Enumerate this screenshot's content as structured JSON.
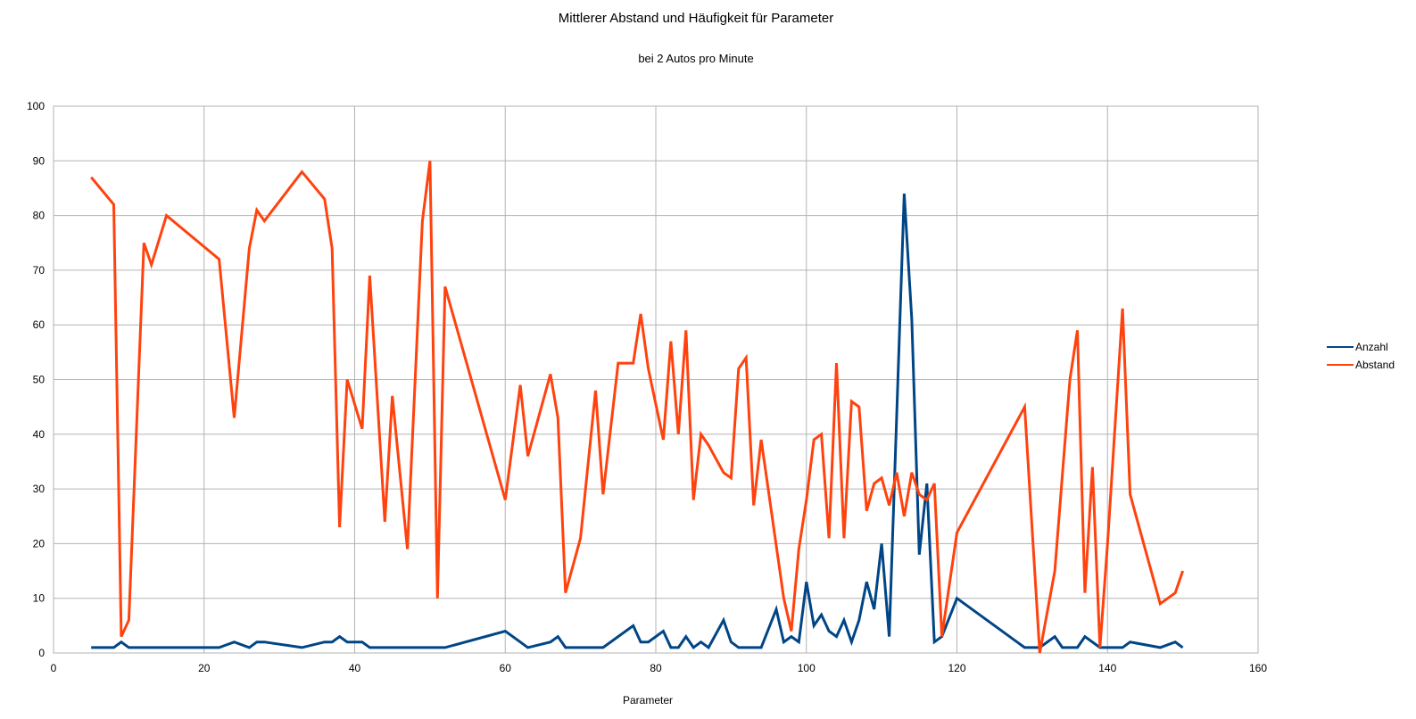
{
  "chart_data": {
    "type": "line",
    "title": "Mittlerer Abstand und Häufigkeit für Parameter",
    "subtitle": "bei 2 Autos pro Minute",
    "xlabel": "Parameter",
    "ylabel": "",
    "xlim": [
      0,
      160
    ],
    "ylim": [
      0,
      100
    ],
    "xticks": [
      0,
      20,
      40,
      60,
      80,
      100,
      120,
      140,
      160
    ],
    "yticks": [
      0,
      10,
      20,
      30,
      40,
      50,
      60,
      70,
      80,
      90,
      100
    ],
    "grid": true,
    "legend_position": "right",
    "series": [
      {
        "name": "Anzahl",
        "color": "#004586",
        "points": [
          [
            5,
            1
          ],
          [
            8,
            1
          ],
          [
            9,
            2
          ],
          [
            10,
            1
          ],
          [
            12,
            1
          ],
          [
            13,
            1
          ],
          [
            15,
            1
          ],
          [
            22,
            1
          ],
          [
            24,
            2
          ],
          [
            26,
            1
          ],
          [
            27,
            2
          ],
          [
            28,
            2
          ],
          [
            33,
            1
          ],
          [
            36,
            2
          ],
          [
            37,
            2
          ],
          [
            38,
            3
          ],
          [
            39,
            2
          ],
          [
            41,
            2
          ],
          [
            42,
            1
          ],
          [
            44,
            1
          ],
          [
            45,
            1
          ],
          [
            47,
            1
          ],
          [
            49,
            1
          ],
          [
            50,
            1
          ],
          [
            51,
            1
          ],
          [
            52,
            1
          ],
          [
            60,
            4
          ],
          [
            62,
            2
          ],
          [
            63,
            1
          ],
          [
            66,
            2
          ],
          [
            67,
            3
          ],
          [
            68,
            1
          ],
          [
            70,
            1
          ],
          [
            72,
            1
          ],
          [
            73,
            1
          ],
          [
            77,
            5
          ],
          [
            78,
            2
          ],
          [
            79,
            2
          ],
          [
            81,
            4
          ],
          [
            82,
            1
          ],
          [
            83,
            1
          ],
          [
            84,
            3
          ],
          [
            85,
            1
          ],
          [
            86,
            2
          ],
          [
            87,
            1
          ],
          [
            89,
            6
          ],
          [
            90,
            2
          ],
          [
            91,
            1
          ],
          [
            92,
            1
          ],
          [
            93,
            1
          ],
          [
            94,
            1
          ],
          [
            96,
            8
          ],
          [
            97,
            2
          ],
          [
            98,
            3
          ],
          [
            99,
            2
          ],
          [
            100,
            13
          ],
          [
            101,
            5
          ],
          [
            102,
            7
          ],
          [
            103,
            4
          ],
          [
            104,
            3
          ],
          [
            105,
            6
          ],
          [
            106,
            2
          ],
          [
            107,
            6
          ],
          [
            108,
            13
          ],
          [
            109,
            8
          ],
          [
            110,
            20
          ],
          [
            111,
            3
          ],
          [
            113,
            84
          ],
          [
            114,
            61
          ],
          [
            115,
            18
          ],
          [
            116,
            31
          ],
          [
            117,
            2
          ],
          [
            118,
            3
          ],
          [
            120,
            10
          ],
          [
            129,
            1
          ],
          [
            131,
            1
          ],
          [
            133,
            3
          ],
          [
            134,
            1
          ],
          [
            136,
            1
          ],
          [
            137,
            3
          ],
          [
            139,
            1
          ],
          [
            141,
            1
          ],
          [
            142,
            1
          ],
          [
            143,
            2
          ],
          [
            147,
            1
          ],
          [
            149,
            2
          ],
          [
            150,
            1
          ]
        ]
      },
      {
        "name": "Abstand",
        "color": "#ff420e",
        "points": [
          [
            5,
            87
          ],
          [
            8,
            82
          ],
          [
            9,
            3
          ],
          [
            10,
            6
          ],
          [
            12,
            75
          ],
          [
            13,
            71
          ],
          [
            15,
            80
          ],
          [
            22,
            72
          ],
          [
            24,
            43
          ],
          [
            26,
            74
          ],
          [
            27,
            81
          ],
          [
            28,
            79
          ],
          [
            33,
            88
          ],
          [
            36,
            83
          ],
          [
            37,
            74
          ],
          [
            38,
            23
          ],
          [
            39,
            50
          ],
          [
            41,
            41
          ],
          [
            42,
            69
          ],
          [
            44,
            24
          ],
          [
            45,
            47
          ],
          [
            47,
            19
          ],
          [
            49,
            79
          ],
          [
            50,
            90
          ],
          [
            51,
            10
          ],
          [
            52,
            67
          ],
          [
            60,
            28
          ],
          [
            62,
            49
          ],
          [
            63,
            36
          ],
          [
            66,
            51
          ],
          [
            67,
            43
          ],
          [
            68,
            11
          ],
          [
            70,
            21
          ],
          [
            72,
            48
          ],
          [
            73,
            29
          ],
          [
            75,
            53
          ],
          [
            77,
            53
          ],
          [
            78,
            62
          ],
          [
            79,
            52
          ],
          [
            81,
            39
          ],
          [
            82,
            57
          ],
          [
            83,
            40
          ],
          [
            84,
            59
          ],
          [
            85,
            28
          ],
          [
            86,
            40
          ],
          [
            87,
            38
          ],
          [
            89,
            33
          ],
          [
            90,
            32
          ],
          [
            91,
            52
          ],
          [
            92,
            54
          ],
          [
            93,
            27
          ],
          [
            94,
            39
          ],
          [
            97,
            10
          ],
          [
            98,
            4
          ],
          [
            99,
            19
          ],
          [
            100,
            28
          ],
          [
            101,
            39
          ],
          [
            102,
            40
          ],
          [
            103,
            21
          ],
          [
            104,
            53
          ],
          [
            105,
            21
          ],
          [
            106,
            46
          ],
          [
            107,
            45
          ],
          [
            108,
            26
          ],
          [
            109,
            31
          ],
          [
            110,
            32
          ],
          [
            111,
            27
          ],
          [
            112,
            33
          ],
          [
            113,
            25
          ],
          [
            114,
            33
          ],
          [
            115,
            29
          ],
          [
            116,
            28
          ],
          [
            117,
            31
          ],
          [
            118,
            3
          ],
          [
            120,
            22
          ],
          [
            129,
            45
          ],
          [
            131,
            0
          ],
          [
            133,
            15
          ],
          [
            135,
            50
          ],
          [
            136,
            59
          ],
          [
            137,
            11
          ],
          [
            138,
            34
          ],
          [
            139,
            1
          ],
          [
            140,
            20
          ],
          [
            142,
            63
          ],
          [
            143,
            29
          ],
          [
            147,
            9
          ],
          [
            149,
            11
          ],
          [
            150,
            15
          ]
        ]
      }
    ]
  }
}
